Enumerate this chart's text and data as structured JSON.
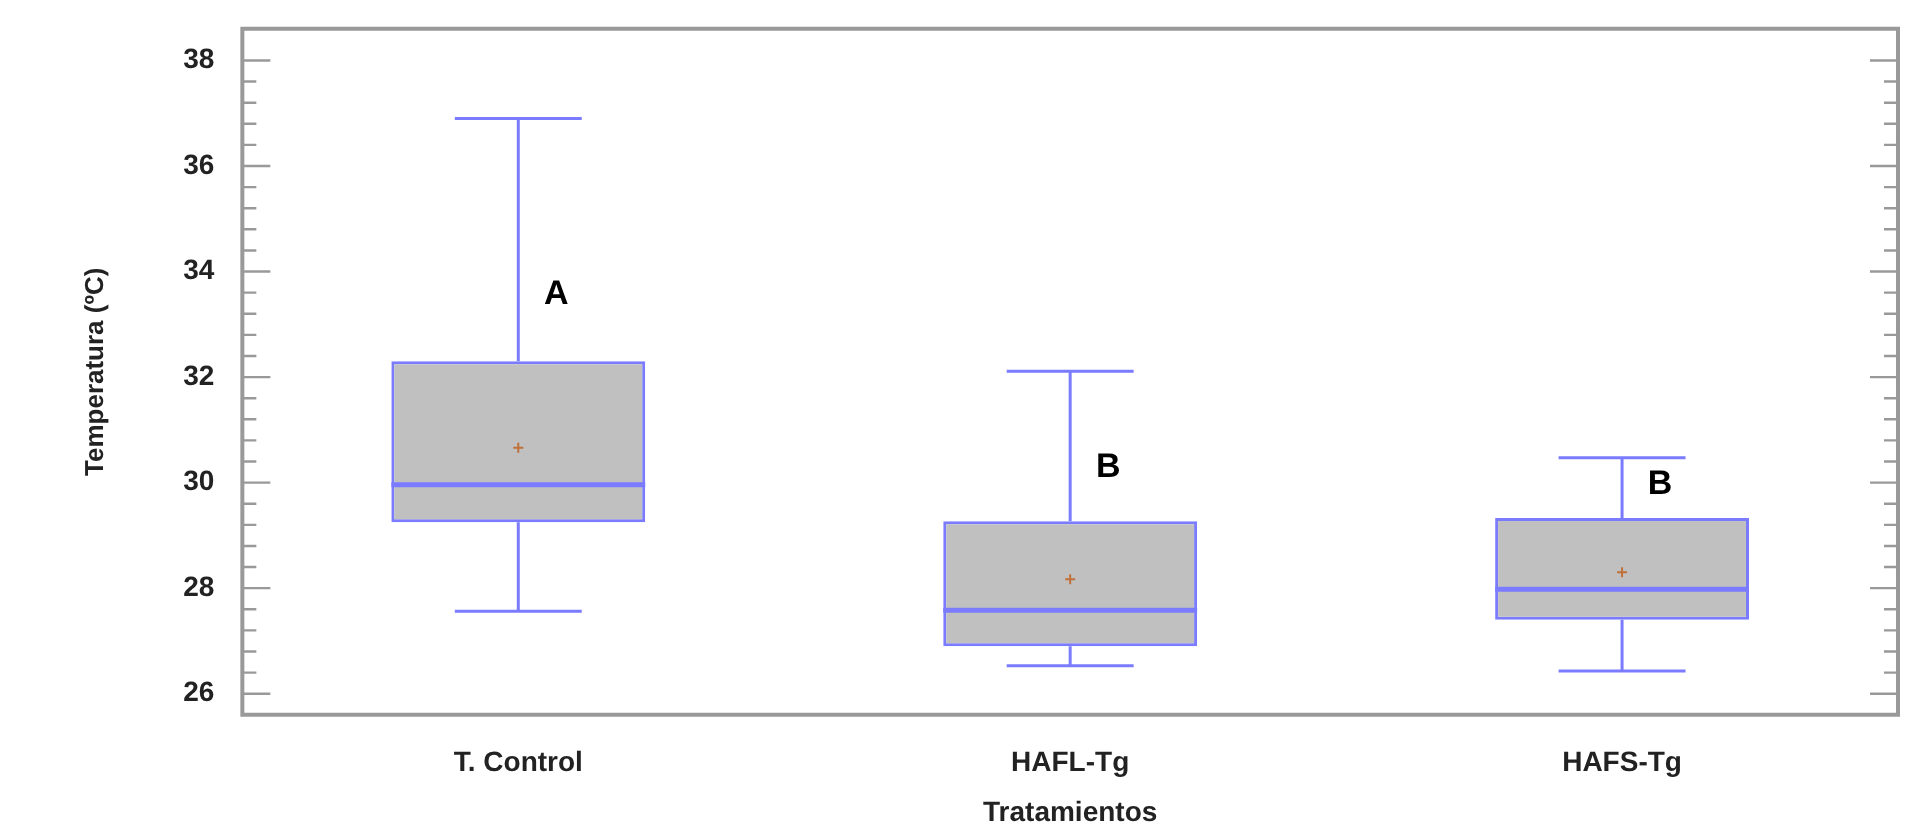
{
  "chart_data": {
    "type": "box",
    "xlabel": "Tratamientos",
    "ylabel": "Temperatura (ºC)",
    "categories": [
      "T. Control",
      "HAFL-Tg",
      "HAFS-Tg"
    ],
    "color": "#7b7bff",
    "boxes": [
      {
        "low": 27.56,
        "q1": 29.25,
        "median": 29.96,
        "q3": 32.3,
        "high": 36.9,
        "mean": 30.66
      },
      {
        "low": 26.53,
        "q1": 26.9,
        "median": 27.58,
        "q3": 29.27,
        "high": 32.11,
        "mean": 28.17
      },
      {
        "low": 26.43,
        "q1": 27.4,
        "median": 27.98,
        "q3": 29.33,
        "high": 30.47,
        "mean": 28.3
      }
    ],
    "ylim": [
      25.6,
      38.6
    ],
    "yticks": [
      26,
      {
        "value": 26.4,
        "label": null
      },
      {
        "value": 26.8,
        "label": null
      },
      {
        "value": 27.2,
        "label": null
      },
      {
        "value": 27.6,
        "label": null
      },
      28,
      {
        "value": 28.4,
        "label": null
      },
      {
        "value": 28.8,
        "label": null
      },
      {
        "value": 29.2,
        "label": null
      },
      {
        "value": 29.6,
        "label": null
      },
      30,
      {
        "value": 30.4,
        "label": null
      },
      {
        "value": 30.8,
        "label": null
      },
      {
        "value": 31.2,
        "label": null
      },
      {
        "value": 31.6,
        "label": null
      },
      32,
      {
        "value": 32.4,
        "label": null
      },
      {
        "value": 32.8,
        "label": null
      },
      {
        "value": 33.2,
        "label": null
      },
      {
        "value": 33.6,
        "label": null
      },
      34,
      {
        "value": 34.4,
        "label": null
      },
      {
        "value": 34.8,
        "label": null
      },
      {
        "value": 35.2,
        "label": null
      },
      {
        "value": 35.6,
        "label": null
      },
      36,
      {
        "value": 36.4,
        "label": null
      },
      {
        "value": 36.8,
        "label": null
      },
      {
        "value": 37.2,
        "label": null
      },
      {
        "value": 37.6,
        "label": null
      },
      38
    ],
    "grid": false,
    "annotations": [
      {
        "text": "A",
        "x": "T. Control",
        "y": 33.56
      },
      {
        "text": "B",
        "x": "HAFL-Tg",
        "y": 30.28
      },
      {
        "text": "B",
        "x": "HAFS-Tg",
        "y": 29.97
      }
    ]
  }
}
